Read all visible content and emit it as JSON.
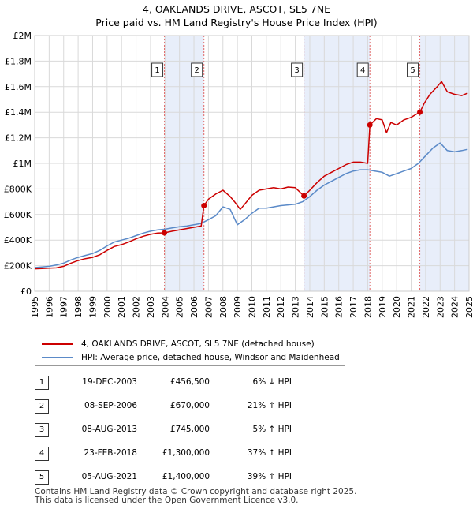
{
  "chart_data": {
    "type": "line",
    "title": "4, OAKLANDS DRIVE, ASCOT, SL5 7NE",
    "subtitle": "Price paid vs. HM Land Registry's House Price Index (HPI)",
    "xlabel": "",
    "ylabel": "",
    "xlim": [
      1995,
      2025
    ],
    "ylim": [
      0,
      2000000
    ],
    "x_ticks": [
      "1995",
      "1996",
      "1997",
      "1998",
      "1999",
      "2000",
      "2001",
      "2002",
      "2003",
      "2004",
      "2005",
      "2006",
      "2007",
      "2008",
      "2009",
      "2010",
      "2011",
      "2012",
      "2013",
      "2014",
      "2015",
      "2016",
      "2017",
      "2018",
      "2019",
      "2020",
      "2021",
      "2022",
      "2023",
      "2024",
      "2025"
    ],
    "y_ticks": [
      {
        "value": 0,
        "label": "£0"
      },
      {
        "value": 200000,
        "label": "£200K"
      },
      {
        "value": 400000,
        "label": "£400K"
      },
      {
        "value": 600000,
        "label": "£600K"
      },
      {
        "value": 800000,
        "label": "£800K"
      },
      {
        "value": 1000000,
        "label": "£1M"
      },
      {
        "value": 1200000,
        "label": "£1.2M"
      },
      {
        "value": 1400000,
        "label": "£1.4M"
      },
      {
        "value": 1600000,
        "label": "£1.6M"
      },
      {
        "value": 1800000,
        "label": "£1.8M"
      },
      {
        "value": 2000000,
        "label": "£2M"
      }
    ],
    "grid": true,
    "legend_position": "below",
    "shaded_periods": [
      {
        "from": 2003.96,
        "to": 2006.69
      },
      {
        "from": 2013.6,
        "to": 2018.15
      },
      {
        "from": 2021.6,
        "to": 2025.0
      }
    ],
    "series": [
      {
        "name": "4, OAKLANDS DRIVE, ASCOT, SL5 7NE (detached house)",
        "color": "#cc0000",
        "points": [
          [
            1995.0,
            175000
          ],
          [
            1995.5,
            178000
          ],
          [
            1996.0,
            180000
          ],
          [
            1996.5,
            183000
          ],
          [
            1997.0,
            195000
          ],
          [
            1997.5,
            220000
          ],
          [
            1998.0,
            240000
          ],
          [
            1998.5,
            255000
          ],
          [
            1999.0,
            265000
          ],
          [
            1999.5,
            285000
          ],
          [
            2000.0,
            320000
          ],
          [
            2000.5,
            350000
          ],
          [
            2001.0,
            365000
          ],
          [
            2001.5,
            385000
          ],
          [
            2002.0,
            410000
          ],
          [
            2002.5,
            430000
          ],
          [
            2003.0,
            445000
          ],
          [
            2003.5,
            455000
          ],
          [
            2003.96,
            456500
          ],
          [
            2004.5,
            470000
          ],
          [
            2005.0,
            480000
          ],
          [
            2005.5,
            490000
          ],
          [
            2006.0,
            500000
          ],
          [
            2006.5,
            510000
          ],
          [
            2006.69,
            670000
          ],
          [
            2007.0,
            720000
          ],
          [
            2007.5,
            760000
          ],
          [
            2008.0,
            790000
          ],
          [
            2008.5,
            740000
          ],
          [
            2008.8,
            700000
          ],
          [
            2009.2,
            640000
          ],
          [
            2009.5,
            680000
          ],
          [
            2010.0,
            750000
          ],
          [
            2010.5,
            790000
          ],
          [
            2011.0,
            800000
          ],
          [
            2011.5,
            810000
          ],
          [
            2012.0,
            800000
          ],
          [
            2012.5,
            815000
          ],
          [
            2013.0,
            810000
          ],
          [
            2013.6,
            745000
          ],
          [
            2014.0,
            790000
          ],
          [
            2014.5,
            850000
          ],
          [
            2015.0,
            900000
          ],
          [
            2015.5,
            930000
          ],
          [
            2016.0,
            960000
          ],
          [
            2016.5,
            990000
          ],
          [
            2017.0,
            1010000
          ],
          [
            2017.5,
            1010000
          ],
          [
            2018.0,
            1000000
          ],
          [
            2018.15,
            1300000
          ],
          [
            2018.6,
            1350000
          ],
          [
            2019.0,
            1340000
          ],
          [
            2019.3,
            1240000
          ],
          [
            2019.6,
            1320000
          ],
          [
            2020.0,
            1300000
          ],
          [
            2020.5,
            1340000
          ],
          [
            2021.0,
            1360000
          ],
          [
            2021.3,
            1380000
          ],
          [
            2021.6,
            1400000
          ],
          [
            2021.9,
            1470000
          ],
          [
            2022.3,
            1540000
          ],
          [
            2022.8,
            1600000
          ],
          [
            2023.1,
            1640000
          ],
          [
            2023.5,
            1560000
          ],
          [
            2024.0,
            1540000
          ],
          [
            2024.5,
            1530000
          ],
          [
            2024.9,
            1550000
          ]
        ],
        "markers": [
          [
            2003.96,
            456500
          ],
          [
            2006.69,
            670000
          ],
          [
            2013.6,
            745000
          ],
          [
            2018.15,
            1300000
          ],
          [
            2021.6,
            1400000
          ]
        ]
      },
      {
        "name": "HPI: Average price, detached house, Windsor and Maidenhead",
        "color": "#5b8ac8",
        "points": [
          [
            1995.0,
            185000
          ],
          [
            1995.5,
            190000
          ],
          [
            1996.0,
            195000
          ],
          [
            1996.5,
            205000
          ],
          [
            1997.0,
            220000
          ],
          [
            1997.5,
            245000
          ],
          [
            1998.0,
            265000
          ],
          [
            1998.5,
            280000
          ],
          [
            1999.0,
            295000
          ],
          [
            1999.5,
            320000
          ],
          [
            2000.0,
            355000
          ],
          [
            2000.5,
            385000
          ],
          [
            2001.0,
            400000
          ],
          [
            2001.5,
            415000
          ],
          [
            2002.0,
            435000
          ],
          [
            2002.5,
            455000
          ],
          [
            2003.0,
            470000
          ],
          [
            2003.5,
            480000
          ],
          [
            2004.0,
            485000
          ],
          [
            2004.5,
            495000
          ],
          [
            2005.0,
            505000
          ],
          [
            2005.5,
            510000
          ],
          [
            2006.0,
            520000
          ],
          [
            2006.5,
            530000
          ],
          [
            2007.0,
            560000
          ],
          [
            2007.5,
            590000
          ],
          [
            2008.0,
            660000
          ],
          [
            2008.5,
            640000
          ],
          [
            2009.0,
            520000
          ],
          [
            2009.5,
            560000
          ],
          [
            2010.0,
            610000
          ],
          [
            2010.5,
            650000
          ],
          [
            2011.0,
            650000
          ],
          [
            2011.5,
            660000
          ],
          [
            2012.0,
            670000
          ],
          [
            2012.5,
            675000
          ],
          [
            2013.0,
            680000
          ],
          [
            2013.5,
            700000
          ],
          [
            2014.0,
            740000
          ],
          [
            2014.5,
            790000
          ],
          [
            2015.0,
            830000
          ],
          [
            2015.5,
            860000
          ],
          [
            2016.0,
            890000
          ],
          [
            2016.5,
            920000
          ],
          [
            2017.0,
            940000
          ],
          [
            2017.5,
            950000
          ],
          [
            2018.0,
            950000
          ],
          [
            2018.5,
            940000
          ],
          [
            2019.0,
            930000
          ],
          [
            2019.5,
            900000
          ],
          [
            2020.0,
            920000
          ],
          [
            2020.5,
            940000
          ],
          [
            2021.0,
            960000
          ],
          [
            2021.5,
            1000000
          ],
          [
            2022.0,
            1060000
          ],
          [
            2022.5,
            1120000
          ],
          [
            2023.0,
            1160000
          ],
          [
            2023.5,
            1100000
          ],
          [
            2024.0,
            1090000
          ],
          [
            2024.5,
            1100000
          ],
          [
            2024.9,
            1110000
          ]
        ]
      }
    ]
  },
  "sales": [
    {
      "num": "1",
      "date": "19-DEC-2003",
      "price": "£456,500",
      "hpi": "6% ↓ HPI",
      "x": 2003.96
    },
    {
      "num": "2",
      "date": "08-SEP-2006",
      "price": "£670,000",
      "hpi": "21% ↑ HPI",
      "x": 2006.69
    },
    {
      "num": "3",
      "date": "08-AUG-2013",
      "price": "£745,000",
      "hpi": "5% ↑ HPI",
      "x": 2013.6
    },
    {
      "num": "4",
      "date": "23-FEB-2018",
      "price": "£1,300,000",
      "hpi": "37% ↑ HPI",
      "x": 2018.15
    },
    {
      "num": "5",
      "date": "05-AUG-2021",
      "price": "£1,400,000",
      "hpi": "39% ↑ HPI",
      "x": 2021.6
    }
  ],
  "footer": {
    "line1": "Contains HM Land Registry data © Crown copyright and database right 2025.",
    "line2": "This data is licensed under the Open Government Licence v3.0."
  }
}
